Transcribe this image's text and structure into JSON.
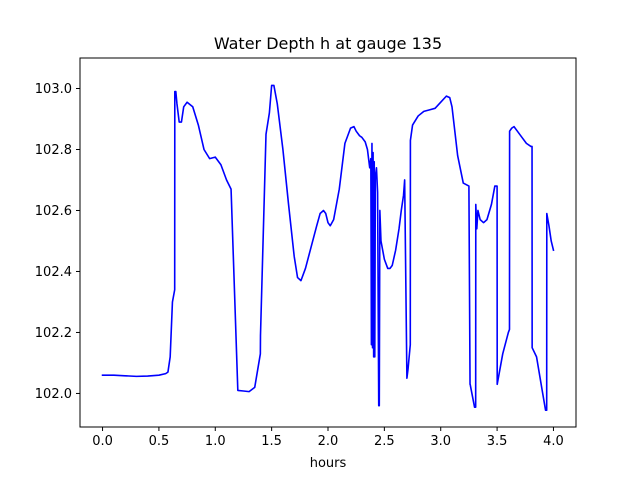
{
  "chart_data": {
    "type": "line",
    "title": "Water Depth h at gauge 135",
    "xlabel": "hours",
    "ylabel": "",
    "xlim": [
      -0.2,
      4.2
    ],
    "ylim": [
      101.89,
      103.1
    ],
    "grid": false,
    "legend": "none",
    "x_ticks": [
      0.0,
      0.5,
      1.0,
      1.5,
      2.0,
      2.5,
      3.0,
      3.5,
      4.0
    ],
    "x_tick_labels": [
      "0.0",
      "0.5",
      "1.0",
      "1.5",
      "2.0",
      "2.5",
      "3.0",
      "3.5",
      "4.0"
    ],
    "y_ticks": [
      102.0,
      102.2,
      102.4,
      102.6,
      102.8,
      103.0
    ],
    "y_tick_labels": [
      "102.0",
      "102.2",
      "102.4",
      "102.6",
      "102.8",
      "103.0"
    ],
    "series": [
      {
        "color": "#0000ff",
        "x": [
          0.0,
          0.1,
          0.2,
          0.3,
          0.4,
          0.5,
          0.56,
          0.58,
          0.6,
          0.62,
          0.64,
          0.641,
          0.65,
          0.66,
          0.68,
          0.7,
          0.72,
          0.75,
          0.8,
          0.85,
          0.9,
          0.95,
          1.0,
          1.05,
          1.1,
          1.14,
          1.141,
          1.2,
          1.25,
          1.3,
          1.35,
          1.4,
          1.401,
          1.45,
          1.48,
          1.5,
          1.52,
          1.55,
          1.6,
          1.65,
          1.7,
          1.73,
          1.76,
          1.8,
          1.85,
          1.9,
          1.93,
          1.96,
          1.98,
          2.0,
          2.02,
          2.05,
          2.1,
          2.15,
          2.2,
          2.23,
          2.25,
          2.28,
          2.3,
          2.33,
          2.35,
          2.37,
          2.38,
          2.385,
          2.39,
          2.395,
          2.4,
          2.405,
          2.41,
          2.415,
          2.42,
          2.43,
          2.44,
          2.45,
          2.455,
          2.46,
          2.465,
          2.47,
          2.5,
          2.53,
          2.55,
          2.57,
          2.6,
          2.63,
          2.65,
          2.67,
          2.68,
          2.7,
          2.71,
          2.72,
          2.73,
          2.731,
          2.75,
          2.8,
          2.85,
          2.9,
          2.95,
          3.0,
          3.05,
          3.08,
          3.1,
          3.15,
          3.2,
          3.25,
          3.26,
          3.261,
          3.3,
          3.31,
          3.311,
          3.32,
          3.33,
          3.35,
          3.38,
          3.41,
          3.45,
          3.48,
          3.5,
          3.501,
          3.55,
          3.6,
          3.61,
          3.611,
          3.63,
          3.65,
          3.68,
          3.72,
          3.76,
          3.8,
          3.81,
          3.811,
          3.85,
          3.9,
          3.93,
          3.94,
          3.941,
          3.96,
          3.98,
          4.0
        ],
        "y": [
          102.06,
          102.06,
          102.058,
          102.056,
          102.057,
          102.06,
          102.065,
          102.07,
          102.12,
          102.3,
          102.34,
          102.99,
          102.99,
          102.95,
          102.89,
          102.89,
          102.94,
          102.955,
          102.94,
          102.88,
          102.8,
          102.77,
          102.775,
          102.75,
          102.7,
          102.67,
          102.66,
          102.01,
          102.008,
          102.006,
          102.02,
          102.13,
          102.19,
          102.85,
          102.92,
          103.01,
          103.01,
          102.95,
          102.8,
          102.62,
          102.45,
          102.38,
          102.37,
          102.41,
          102.48,
          102.55,
          102.59,
          102.6,
          102.59,
          102.56,
          102.55,
          102.57,
          102.67,
          102.82,
          102.87,
          102.875,
          102.86,
          102.845,
          102.84,
          102.825,
          102.8,
          102.74,
          102.77,
          102.16,
          102.82,
          102.15,
          102.79,
          102.12,
          102.76,
          102.12,
          102.71,
          102.74,
          102.66,
          101.96,
          101.96,
          102.6,
          102.55,
          102.5,
          102.44,
          102.41,
          102.41,
          102.42,
          102.47,
          102.54,
          102.6,
          102.65,
          102.7,
          102.05,
          102.08,
          102.12,
          102.16,
          102.83,
          102.88,
          102.91,
          102.925,
          102.93,
          102.935,
          102.955,
          102.975,
          102.97,
          102.94,
          102.78,
          102.69,
          102.68,
          102.03,
          102.03,
          101.955,
          101.955,
          102.62,
          102.54,
          102.6,
          102.57,
          102.56,
          102.57,
          102.62,
          102.68,
          102.68,
          102.03,
          102.13,
          102.2,
          102.21,
          102.86,
          102.87,
          102.875,
          102.86,
          102.84,
          102.82,
          102.81,
          102.81,
          102.15,
          102.12,
          102.01,
          101.945,
          101.945,
          102.59,
          102.55,
          102.5,
          102.47
        ]
      }
    ]
  }
}
